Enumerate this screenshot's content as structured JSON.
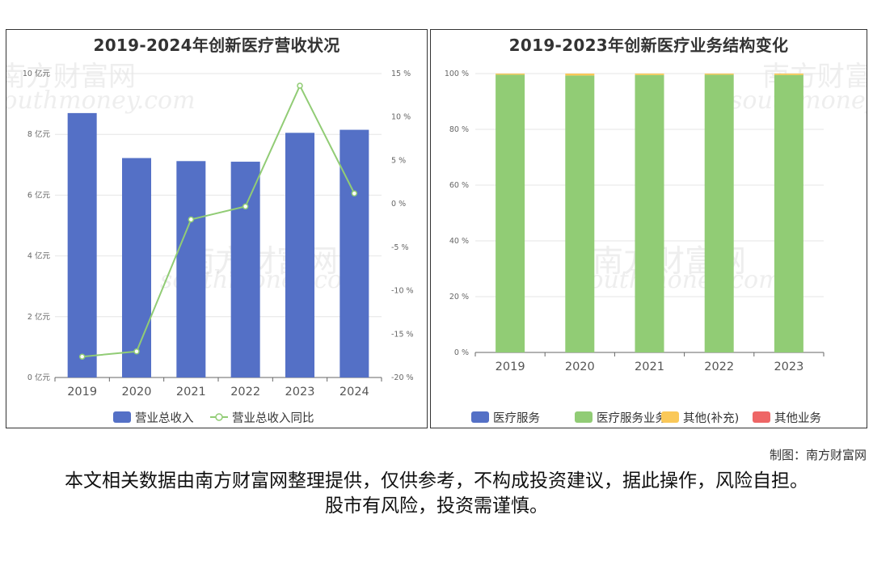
{
  "chart_data": [
    {
      "type": "bar",
      "title": "2019-2024年创新医疗营收状况",
      "categories": [
        "2019",
        "2020",
        "2021",
        "2022",
        "2023",
        "2024"
      ],
      "y_left": {
        "unit": "亿元",
        "ylim": [
          0,
          10
        ],
        "ticks": [
          "0 亿元",
          "2 亿元",
          "4 亿元",
          "6 亿元",
          "8 亿元",
          "10 亿元"
        ]
      },
      "y_right": {
        "unit": "%",
        "ylim": [
          -20,
          15
        ],
        "ticks": [
          "-20 %",
          "-15 %",
          "-10 %",
          "-5 %",
          "0 %",
          "5 %",
          "10 %",
          "15 %"
        ]
      },
      "series": [
        {
          "name": "营业总收入",
          "type": "bar",
          "axis": "left",
          "color": "#5470c6",
          "values": [
            8.7,
            7.22,
            7.12,
            7.1,
            8.05,
            8.15
          ]
        },
        {
          "name": "营业总收入同比",
          "type": "line",
          "axis": "right",
          "color": "#91cc75",
          "values": [
            -17.6,
            -17.0,
            -1.8,
            -0.3,
            13.6,
            1.2
          ]
        }
      ],
      "legend": "bottom",
      "grid": true
    },
    {
      "type": "bar",
      "stacked": true,
      "title": "2019-2023年创新医疗业务结构变化",
      "categories": [
        "2019",
        "2020",
        "2021",
        "2022",
        "2023"
      ],
      "ylim": [
        0,
        100
      ],
      "y_ticks": [
        "0 %",
        "20 %",
        "40 %",
        "60 %",
        "80 %",
        "100 %"
      ],
      "series": [
        {
          "name": "医疗服务",
          "color": "#5470c6",
          "values": [
            0,
            0,
            0,
            0,
            0
          ]
        },
        {
          "name": "医疗服务业务",
          "color": "#91cc75",
          "values": [
            99.6,
            99.3,
            99.5,
            99.6,
            99.5
          ]
        },
        {
          "name": "其他(补充)",
          "color": "#fac858",
          "values": [
            0.4,
            0.7,
            0.5,
            0.4,
            0.5
          ]
        },
        {
          "name": "其他业务",
          "color": "#ee6666",
          "values": [
            0,
            0,
            0,
            0,
            0
          ]
        }
      ],
      "legend": "bottom",
      "grid": true
    }
  ],
  "watermark": {
    "cn": "南方财富网",
    "en": "southmoney.com"
  },
  "credit": "制图：南方财富网",
  "disclaimer": "本文相关数据由南方财富网整理提供，仅供参考，不构成投资建议，据此操作，风险自担。股市有风险，投资需谨慎。"
}
